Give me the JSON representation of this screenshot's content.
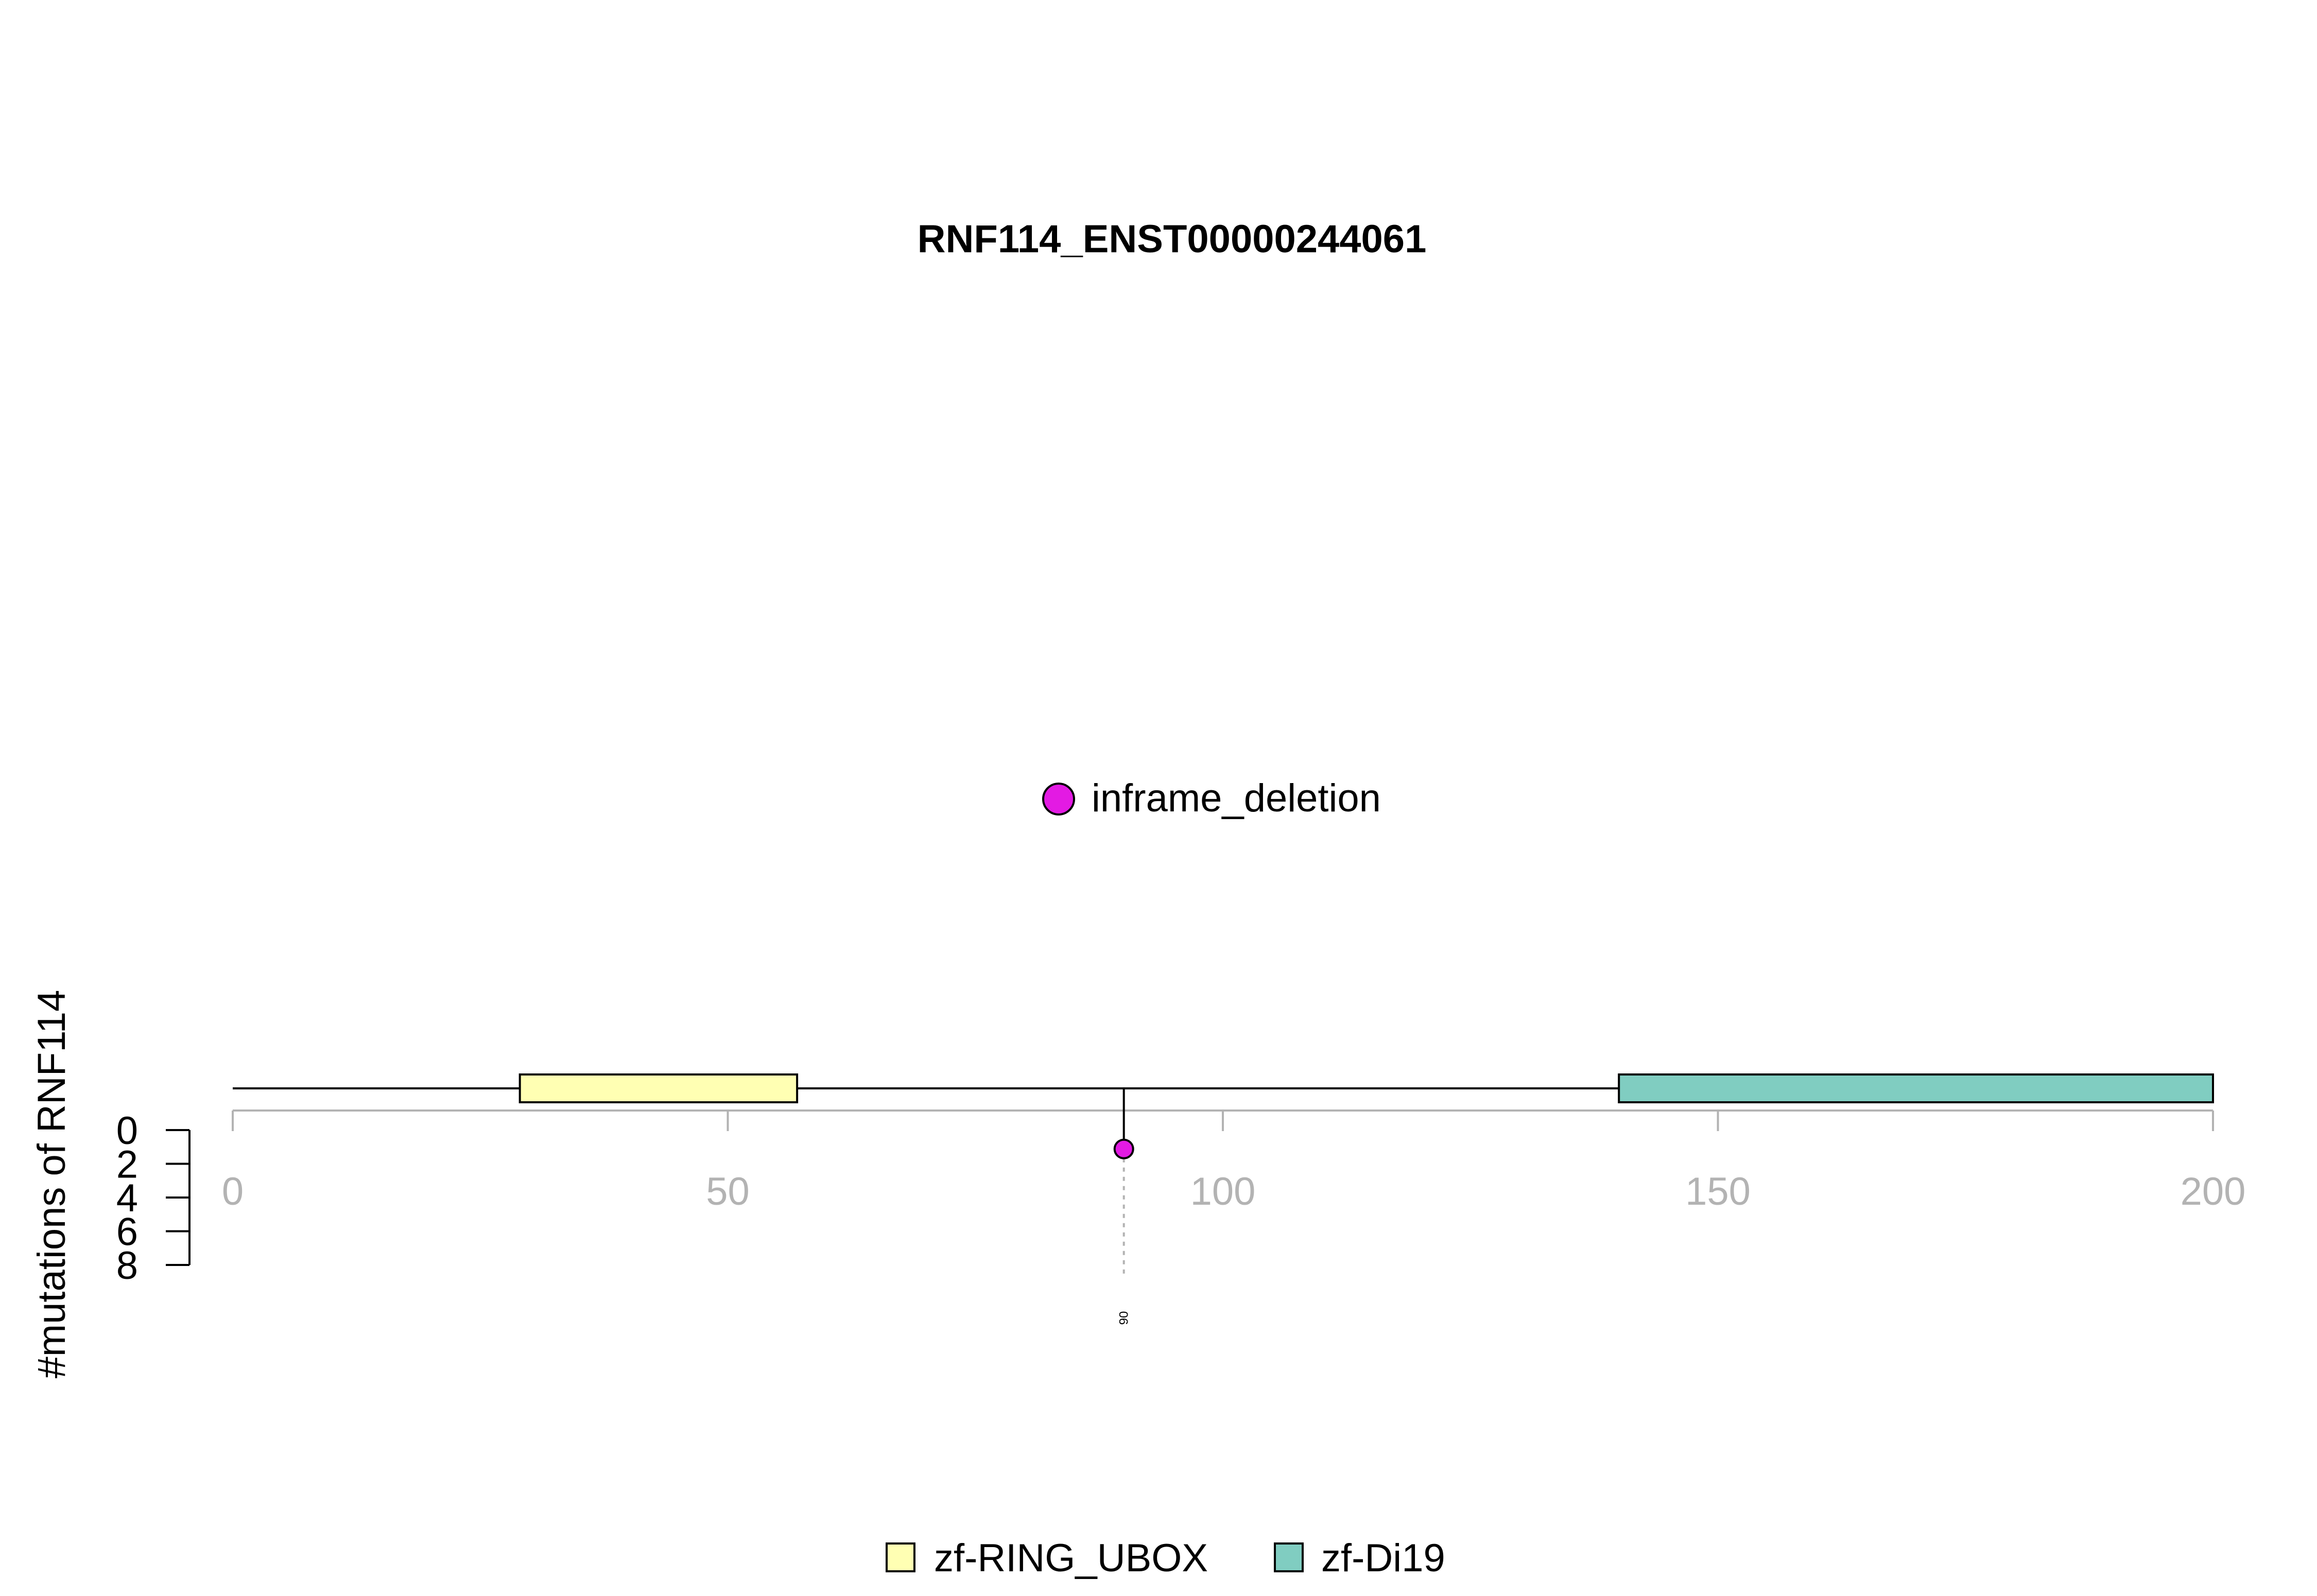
{
  "chart_data": {
    "type": "lollipop",
    "title": "RNF114_ENST00000244061",
    "ylabel": "#mutations of RNF114",
    "xlim": [
      0,
      200
    ],
    "x_ticks": [
      0,
      50,
      100,
      150,
      200
    ],
    "ylim": [
      0,
      8
    ],
    "y_ticks": [
      0,
      2,
      4,
      6,
      8
    ],
    "protein_length": 200,
    "domains": [
      {
        "name": "zf-RING_UBOX",
        "start": 29,
        "end": 57,
        "color": "#FFFFB3"
      },
      {
        "name": "zf-Di19",
        "start": 140,
        "end": 200,
        "color": "#80CDC1"
      }
    ],
    "mutation_legend": [
      {
        "label": "inframe_deletion",
        "color": "#E31AE3"
      }
    ],
    "mutations": [
      {
        "position": 90,
        "count": 1,
        "type": "inframe_deletion",
        "label": "90",
        "color": "#E31AE3"
      }
    ]
  }
}
